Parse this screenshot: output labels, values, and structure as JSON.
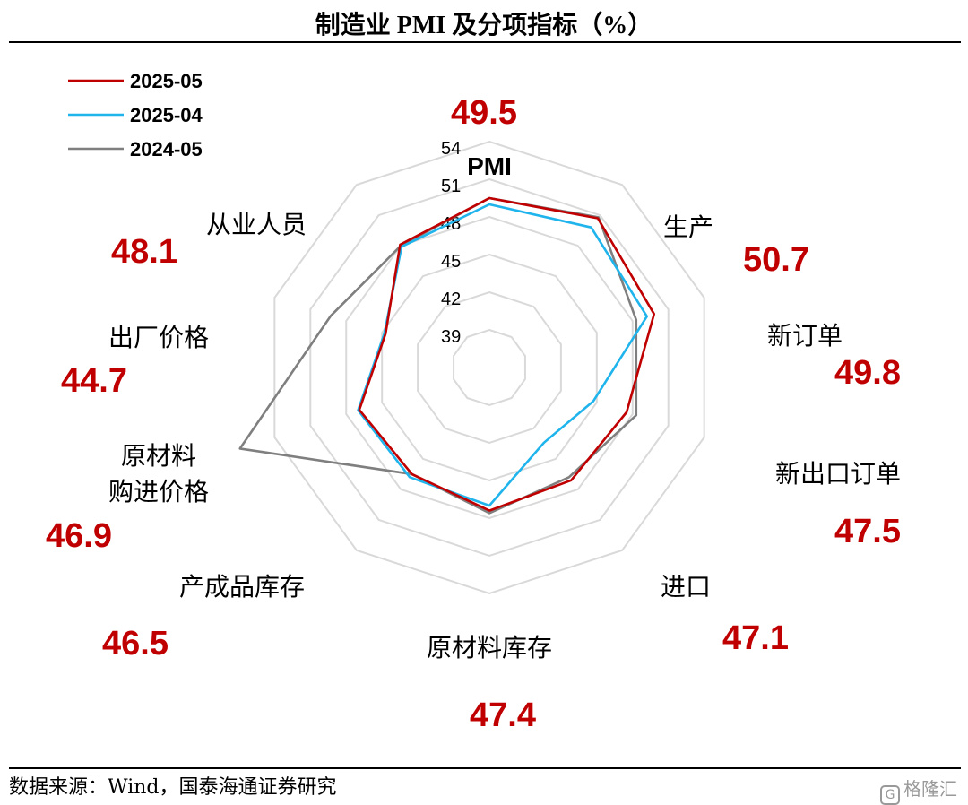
{
  "title": "制造业 PMI 及分项指标（%）",
  "source": "数据来源：Wind，国泰海通证券研究",
  "watermark": "格隆汇",
  "chart_data": {
    "type": "radar",
    "title": "制造业 PMI 及分项指标（%）",
    "axes": [
      {
        "label": "PMI",
        "value_label": "49.5"
      },
      {
        "label": "生产",
        "value_label": "50.7"
      },
      {
        "label": "新订单",
        "value_label": "49.8"
      },
      {
        "label": "新出口订单",
        "value_label": "47.5"
      },
      {
        "label": "进口",
        "value_label": "47.1"
      },
      {
        "label": "原材料库存",
        "value_label": "47.4"
      },
      {
        "label": "产成品库存",
        "value_label": "46.5"
      },
      {
        "label": "原材料购进价格",
        "value_label": "46.9"
      },
      {
        "label": "出厂价格",
        "value_label": "44.7"
      },
      {
        "label": "从业人员",
        "value_label": "48.1"
      }
    ],
    "r_ticks": [
      "39",
      "42",
      "45",
      "48",
      "51",
      "54"
    ],
    "r_range": [
      36,
      54
    ],
    "grid": true,
    "legend_position": "top-left",
    "series": [
      {
        "name": "2025-05",
        "color": "#c00000",
        "values": [
          49.5,
          50.7,
          49.8,
          47.5,
          47.1,
          47.4,
          46.5,
          46.9,
          44.7,
          48.1
        ]
      },
      {
        "name": "2025-04",
        "color": "#1fb4ec",
        "values": [
          49.0,
          49.8,
          49.2,
          44.7,
          43.4,
          47.0,
          46.8,
          47.0,
          44.8,
          47.9
        ]
      },
      {
        "name": "2024-05",
        "color": "#7f7f7f",
        "values": [
          49.5,
          50.8,
          48.3,
          48.3,
          46.8,
          47.6,
          46.5,
          56.9,
          49.3,
          48.0
        ]
      }
    ]
  }
}
